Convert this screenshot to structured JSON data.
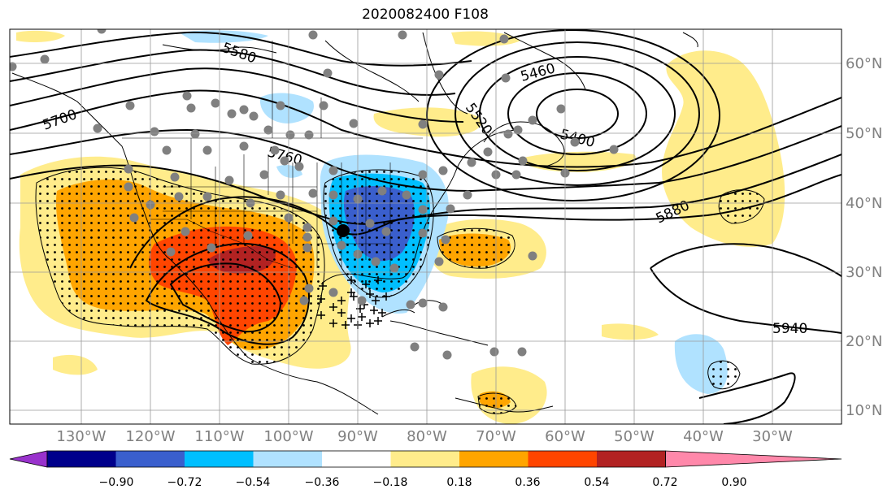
{
  "title": "2020082400 F108",
  "lat_labels": [
    "60°N",
    "50°N",
    "40°N",
    "30°N",
    "20°N",
    "10°N"
  ],
  "lon_labels": [
    "130°W",
    "120°W",
    "110°W",
    "100°W",
    "90°W",
    "80°W",
    "70°W",
    "60°W",
    "50°W",
    "40°W",
    "30°W"
  ],
  "contour_labels": [
    "5580",
    "5700",
    "5760",
    "5460",
    "5520",
    "5400",
    "5880",
    "5940"
  ],
  "colorbar": {
    "ticks": [
      "−0.90",
      "−0.72",
      "−0.54",
      "−0.36",
      "−0.18",
      "0.18",
      "0.36",
      "0.54",
      "0.72",
      "0.90"
    ],
    "colors": [
      "#9932cc",
      "#00008b",
      "#3a5fcd",
      "#00bfff",
      "#b0e2ff",
      "#ffffff",
      "#ffec8b",
      "#ffa500",
      "#ff4500",
      "#b22222",
      "#ff88aa"
    ]
  },
  "colors": {
    "pos_light": "#ffec8b",
    "pos_mid": "#ffa500",
    "pos_strong": "#ff4500",
    "pos_max": "#b22222",
    "neg_light": "#b0e2ff",
    "neg_mid": "#00bfff",
    "neg_strong": "#3a5fcd",
    "station": "#808080",
    "center_marker": "#000000"
  }
}
